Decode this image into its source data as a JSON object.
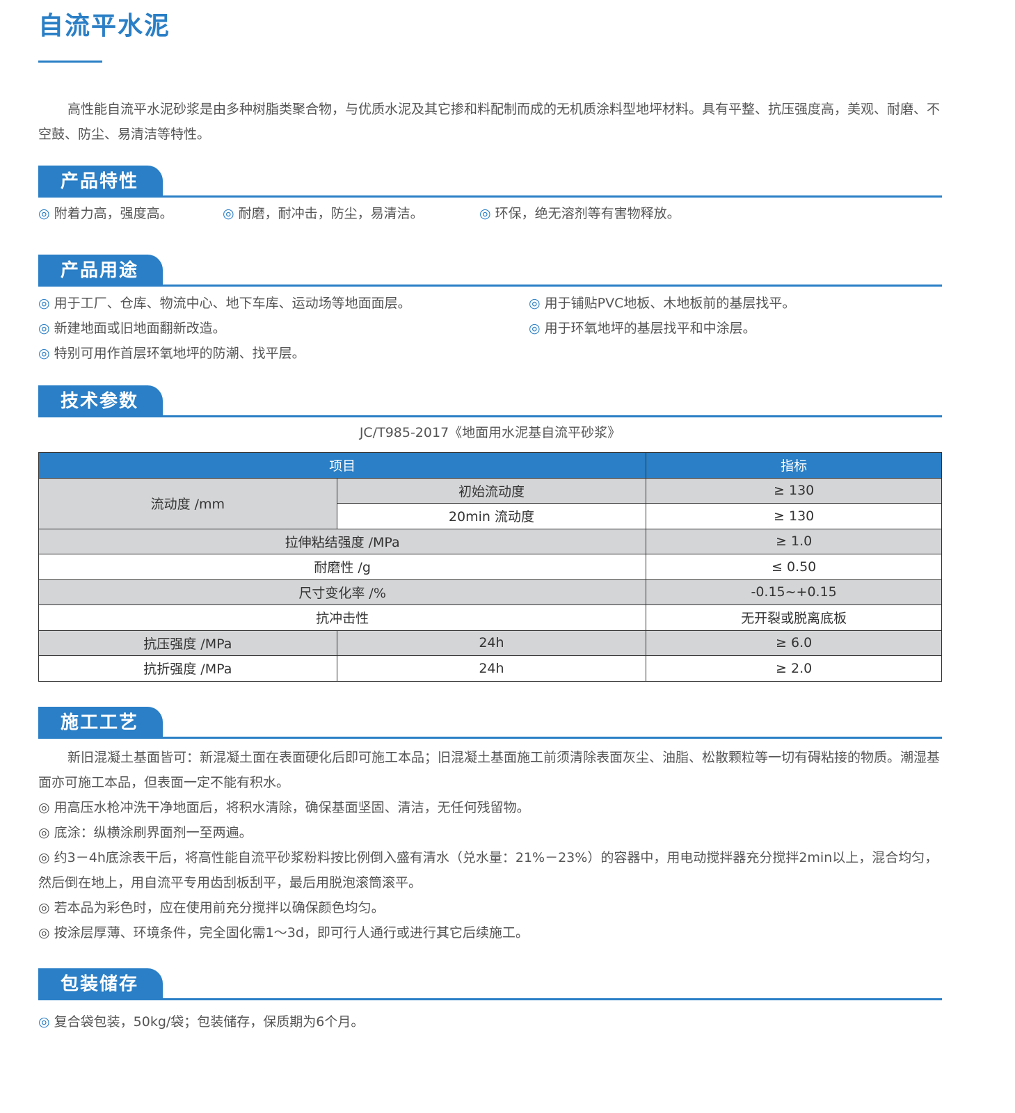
{
  "title": "自流平水泥",
  "intro": "高性能自流平水泥砂浆是由多种树脂类聚合物，与优质水泥及其它掺和料配制而成的无机质涂料型地坪材料。具有平整、抗压强度高，美观、耐磨、不空鼓、防尘、易清洁等特性。",
  "marker": "◎",
  "features": {
    "heading": "产品特性",
    "items": [
      "附着力高，强度高。",
      "耐磨，耐冲击，防尘，易清洁。",
      "环保，绝无溶剂等有害物释放。"
    ]
  },
  "uses": {
    "heading": "产品用途",
    "items": [
      "用于工厂、仓库、物流中心、地下车库、运动场等地面面层。",
      "用于铺贴PVC地板、木地板前的基层找平。",
      "新建地面或旧地面翻新改造。",
      "用于环氧地坪的基层找平和中涂层。",
      "特别可用作首层环氧地坪的防潮、找平层。"
    ]
  },
  "tech": {
    "heading": "技术参数",
    "caption": "JC/T985-2017《地面用水泥基自流平砂浆》",
    "headers": [
      "项目",
      "指标"
    ],
    "rows": [
      {
        "a": "流动度 /mm",
        "b": "初始流动度",
        "v": "≥ 130"
      },
      {
        "b": "20min 流动度",
        "v": "≥ 130"
      },
      {
        "a": "拉伸粘结强度 /MPa",
        "v": "≥ 1.0"
      },
      {
        "a": "耐磨性 /g",
        "v": "≤ 0.50"
      },
      {
        "a": "尺寸变化率 /%",
        "v": "-0.15~+0.15"
      },
      {
        "a": "抗冲击性",
        "v": "无开裂或脱离底板"
      },
      {
        "a": "抗压强度 /MPa",
        "b": "24h",
        "v": "≥ 6.0"
      },
      {
        "a": "抗折强度 /MPa",
        "b": "24h",
        "v": "≥ 2.0"
      }
    ]
  },
  "construction": {
    "heading": "施工工艺",
    "intro": "新旧混凝土基面皆可：新混凝土面在表面硬化后即可施工本品；旧混凝土基面施工前须清除表面灰尘、油脂、松散颗粒等一切有碍粘接的物质。潮湿基面亦可施工本品，但表面一定不能有积水。",
    "items": [
      "用高压水枪冲洗干净地面后，将积水清除，确保基面坚固、清洁，无任何残留物。",
      "底涂：纵横涂刷界面剂一至两遍。",
      "约3－4h底涂表干后，将高性能自流平砂浆粉料按比例倒入盛有清水（兑水量：21%－23%）的容器中，用电动搅拌器充分搅拌2min以上，混合均匀，然后倒在地上，用自流平专用齿刮板刮平，最后用脱泡滚筒滚平。",
      "若本品为彩色时，应在使用前充分搅拌以确保颜色均匀。",
      "按涂层厚薄、环境条件，完全固化需1～3d，即可行人通行或进行其它后续施工。"
    ]
  },
  "packaging": {
    "heading": "包装储存",
    "items": [
      "复合袋包装，50kg/袋；包装储存，保质期为6个月。"
    ]
  },
  "colors": {
    "accent": "#2a7fc6",
    "row_gray": "#d4d5d7",
    "text": "#555555"
  }
}
